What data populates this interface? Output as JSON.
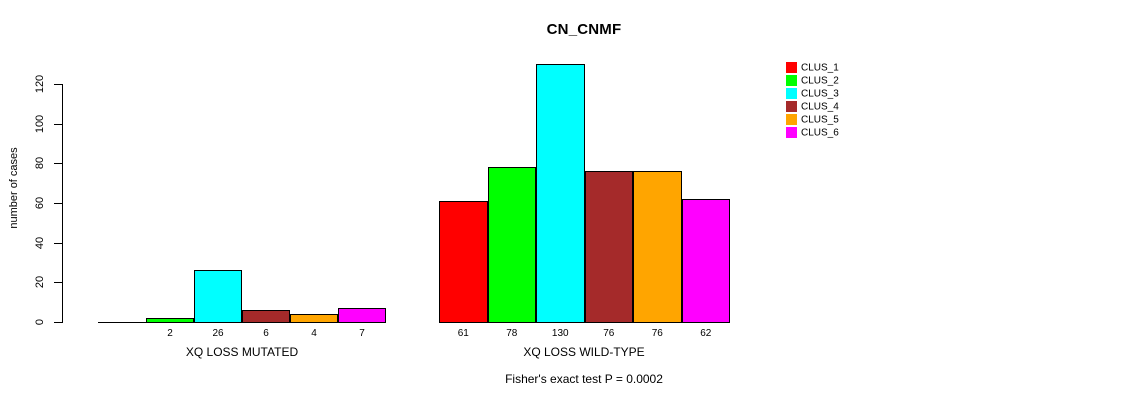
{
  "chart_data": {
    "type": "bar",
    "title": "CN_CNMF",
    "ylabel": "number of cases",
    "caption": "Fisher's exact test P = 0.0002",
    "yticks": [
      0,
      20,
      40,
      60,
      80,
      100,
      120
    ],
    "ylim": [
      0,
      130
    ],
    "grid": false,
    "legend_position": "right",
    "clusters": [
      {
        "label": "CLUS_1",
        "color": "#FF0000"
      },
      {
        "label": "CLUS_2",
        "color": "#00FF00"
      },
      {
        "label": "CLUS_3",
        "color": "#00FFFF"
      },
      {
        "label": "CLUS_4",
        "color": "#A52A2A"
      },
      {
        "label": "CLUS_5",
        "color": "#FFA500"
      },
      {
        "label": "CLUS_6",
        "color": "#FF00FF"
      }
    ],
    "groups": [
      {
        "label": "XQ LOSS MUTATED",
        "values": [
          0,
          2,
          26,
          6,
          4,
          7
        ],
        "bar_labels": [
          "",
          "2",
          "26",
          "6",
          "4",
          "7"
        ]
      },
      {
        "label": "XQ LOSS WILD-TYPE",
        "values": [
          61,
          78,
          130,
          76,
          76,
          62
        ],
        "bar_labels": [
          "61",
          "78",
          "130",
          "76",
          "76",
          "62"
        ]
      }
    ]
  }
}
